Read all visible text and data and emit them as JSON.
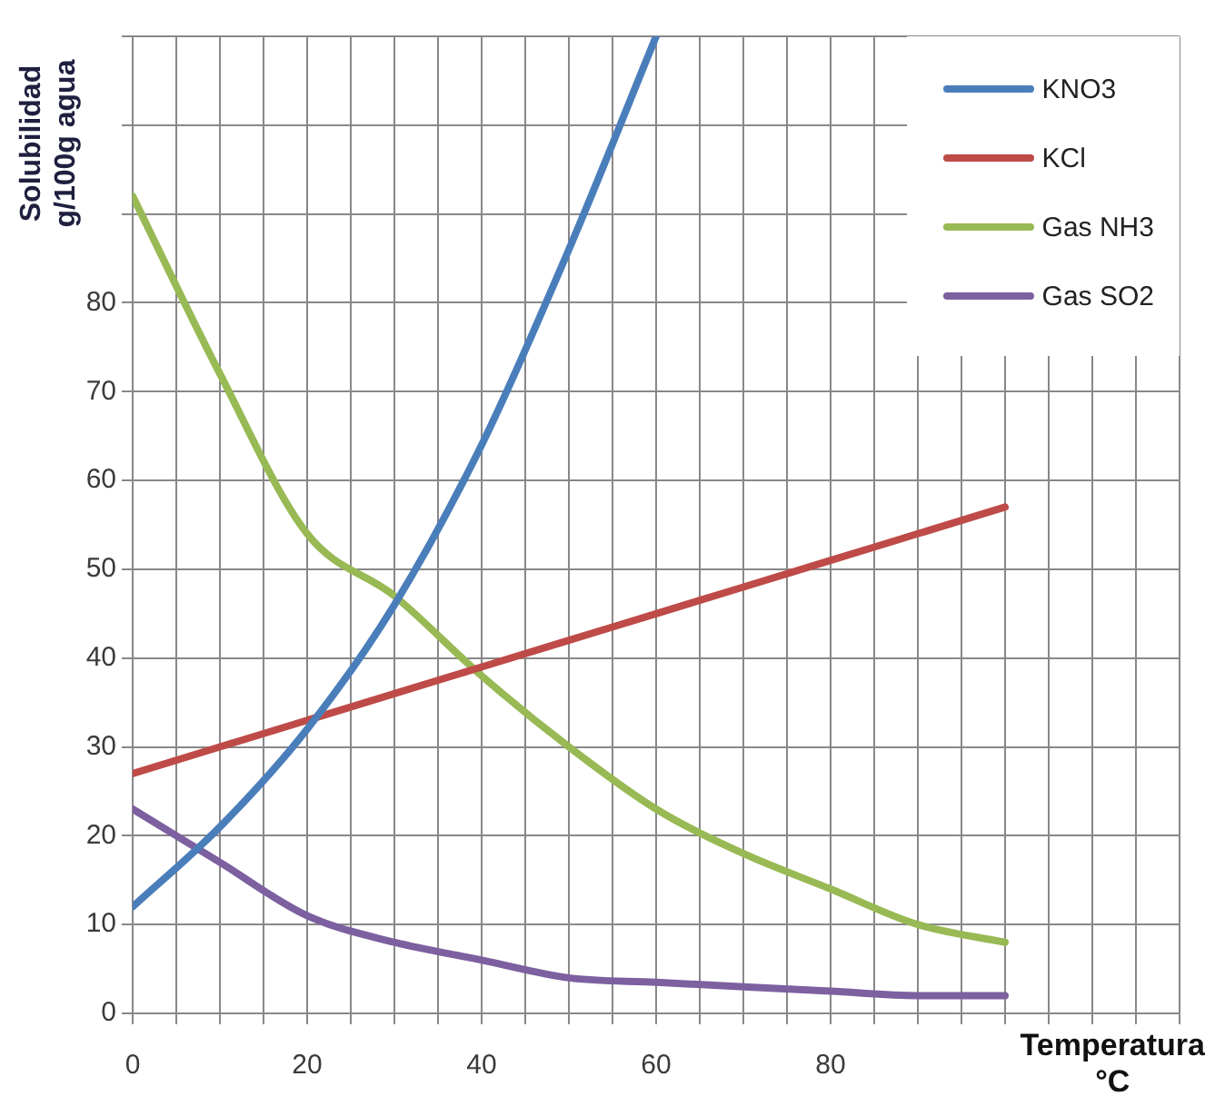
{
  "chart_data": {
    "type": "line",
    "xlabel": "Temperatura\n°C",
    "ylabel": "Solubilidad\ng/100g agua",
    "x": [
      0,
      10,
      20,
      30,
      40,
      50,
      60,
      70,
      80,
      90,
      100
    ],
    "series": [
      {
        "name": "KNO3",
        "color": "#4a7ebb",
        "x": [
          0,
          10,
          20,
          30,
          40,
          50,
          60
        ],
        "values": [
          12,
          21,
          32,
          46,
          64,
          86,
          110
        ]
      },
      {
        "name": "KCl",
        "color": "#be4b48",
        "values": [
          27,
          30,
          33,
          36,
          39,
          42,
          45,
          48,
          51,
          54,
          57
        ]
      },
      {
        "name": "Gas NH3",
        "color": "#98b954",
        "values": [
          92,
          72,
          54,
          47,
          38,
          30,
          23,
          18,
          14,
          10,
          8
        ]
      },
      {
        "name": "Gas SO2",
        "color": "#7d60a0",
        "values": [
          23,
          17,
          11,
          8,
          6,
          4,
          3.5,
          3,
          2.5,
          2,
          2
        ]
      }
    ],
    "xlim": [
      0,
      120
    ],
    "xticks": [
      0,
      {
        "value": 5,
        "label": null
      },
      {
        "value": 10,
        "label": null
      },
      {
        "value": 15,
        "label": null
      },
      20,
      {
        "value": 25,
        "label": null
      },
      {
        "value": 30,
        "label": null
      },
      {
        "value": 35,
        "label": null
      },
      40,
      {
        "value": 45,
        "label": null
      },
      {
        "value": 50,
        "label": null
      },
      {
        "value": 55,
        "label": null
      },
      60,
      {
        "value": 65,
        "label": null
      },
      {
        "value": 70,
        "label": null
      },
      {
        "value": 75,
        "label": null
      },
      80,
      {
        "value": 85,
        "label": null
      },
      {
        "value": 90,
        "label": null
      },
      {
        "value": 95,
        "label": null
      },
      {
        "value": 100,
        "label": null
      },
      {
        "value": 105,
        "label": null
      },
      {
        "value": 110,
        "label": null
      },
      {
        "value": 115,
        "label": null
      },
      {
        "value": 120,
        "label": null
      }
    ],
    "ylim": [
      0,
      110
    ],
    "yticks": [
      0,
      10,
      20,
      30,
      40,
      50,
      60,
      70,
      80,
      {
        "value": 90,
        "label": null
      },
      {
        "value": 100,
        "label": null
      },
      {
        "value": 110,
        "label": null
      }
    ],
    "grid": true,
    "legend": "top right",
    "line_style": "solid",
    "marker": "none"
  }
}
